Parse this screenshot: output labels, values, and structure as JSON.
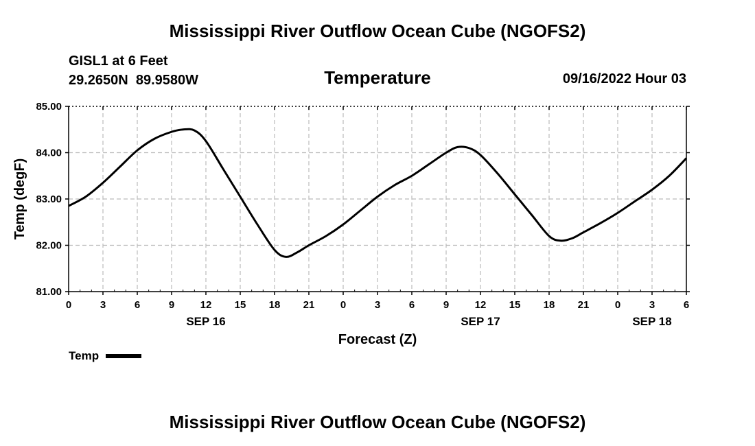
{
  "page": {
    "title": "Mississippi River Outflow Ocean Cube (NGOFS2)",
    "footer_title": "Mississippi River Outflow Ocean Cube (NGOFS2)"
  },
  "header": {
    "station": "GISL1 at 6 Feet",
    "coords": "29.2650N  89.9580W",
    "variable": "Temperature",
    "timestamp": "09/16/2022 Hour 03"
  },
  "legend": {
    "label": "Temp"
  },
  "colors": {
    "line": "#000000",
    "grid": "#bbbbbb"
  },
  "chart_data": {
    "type": "line",
    "title": "Temperature",
    "xlabel": "Forecast (Z)",
    "ylabel": "Temp (degF)",
    "ylim": [
      81.0,
      85.0
    ],
    "xlim": [
      0,
      54
    ],
    "yticks": [
      81.0,
      82.0,
      83.0,
      84.0,
      85.0
    ],
    "ytick_labels": [
      "81.00",
      "82.00",
      "83.00",
      "84.00",
      "85.00"
    ],
    "xticks": [
      0,
      3,
      6,
      9,
      12,
      15,
      18,
      21,
      24,
      27,
      30,
      33,
      36,
      39,
      42,
      45,
      48,
      51,
      54
    ],
    "xtick_labels": [
      "0",
      "3",
      "6",
      "9",
      "12",
      "15",
      "18",
      "21",
      "0",
      "3",
      "6",
      "9",
      "12",
      "15",
      "18",
      "21",
      "0",
      "3",
      "6"
    ],
    "day_labels": [
      {
        "x": 12,
        "label": "SEP 16"
      },
      {
        "x": 36,
        "label": "SEP 17"
      },
      {
        "x": 51,
        "label": "SEP 18"
      }
    ],
    "grid": true,
    "series": [
      {
        "name": "Temp",
        "x": [
          0,
          1.5,
          3,
          4.5,
          6,
          7.5,
          9,
          10,
          11,
          12,
          13.5,
          15,
          16.5,
          18,
          19,
          20,
          21,
          22.5,
          24,
          25.5,
          27,
          28.5,
          30,
          31.5,
          33,
          34,
          35,
          36,
          37.5,
          39,
          40.5,
          42,
          43,
          44,
          45,
          46.5,
          48,
          49.5,
          51,
          52.5,
          54
        ],
        "values": [
          82.85,
          83.05,
          83.35,
          83.7,
          84.05,
          84.3,
          84.45,
          84.5,
          84.48,
          84.25,
          83.65,
          83.05,
          82.45,
          81.9,
          81.75,
          81.85,
          82.0,
          82.2,
          82.45,
          82.75,
          83.05,
          83.3,
          83.5,
          83.75,
          84.0,
          84.12,
          84.1,
          83.95,
          83.55,
          83.1,
          82.65,
          82.2,
          82.1,
          82.15,
          82.28,
          82.48,
          82.7,
          82.95,
          83.2,
          83.5,
          83.88
        ]
      }
    ]
  }
}
